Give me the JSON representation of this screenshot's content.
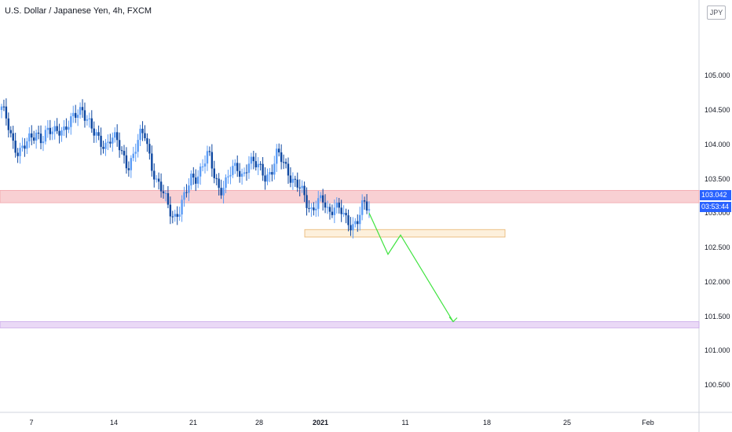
{
  "title": "U.S. Dollar / Japanese Yen, 4h, FXCM",
  "currency_badge": "JPY",
  "last_price": "103.042",
  "countdown": "03:53:44",
  "colors": {
    "up": "#5b9cf6",
    "down": "#0d47a1",
    "resistance_zone": "#f8d0d3",
    "support_zone": "#fdf0dc",
    "target_zone": "#ead9f6",
    "projection": "#3fe33f",
    "price_tag": "#2962ff"
  },
  "chart_data": {
    "type": "candlestick",
    "timeframe": "4h",
    "y_axis": {
      "range": [
        100.1,
        106.1
      ],
      "ticks": [
        "100.500",
        "101.000",
        "101.500",
        "102.000",
        "102.500",
        "103.000",
        "103.500",
        "104.000",
        "104.500",
        "105.000"
      ]
    },
    "x_axis": {
      "ticks": [
        "7",
        "14",
        "21",
        "28",
        "2021",
        "11",
        "18",
        "25",
        "Feb"
      ],
      "bold_tick": "2021"
    },
    "zones": [
      {
        "name": "resistance",
        "low": 103.15,
        "high": 103.33
      },
      {
        "name": "support",
        "low": 102.65,
        "high": 102.76
      },
      {
        "name": "target",
        "low": 101.33,
        "high": 101.42
      }
    ],
    "projection_path": [
      103.0,
      102.4,
      102.68,
      101.42
    ],
    "candles_close_path": [
      104.5,
      104.35,
      104.05,
      103.85,
      103.95,
      104.1,
      104.2,
      104.05,
      104.15,
      104.2,
      104.25,
      104.2,
      104.3,
      104.45,
      104.55,
      104.35,
      104.15,
      104.05,
      104.0,
      104.1,
      104.05,
      103.85,
      103.7,
      103.85,
      104.1,
      104.15,
      103.75,
      103.45,
      103.3,
      103.1,
      102.95,
      103.05,
      103.25,
      103.5,
      103.55,
      103.7,
      103.85,
      103.55,
      103.35,
      103.45,
      103.6,
      103.65,
      103.55,
      103.75,
      103.7,
      103.65,
      103.55,
      103.6,
      103.85,
      103.75,
      103.6,
      103.45,
      103.35,
      103.15,
      103.05,
      103.2,
      103.15,
      102.95,
      103.15,
      103.1,
      102.85,
      102.75,
      102.95,
      103.2,
      103.0
    ]
  }
}
